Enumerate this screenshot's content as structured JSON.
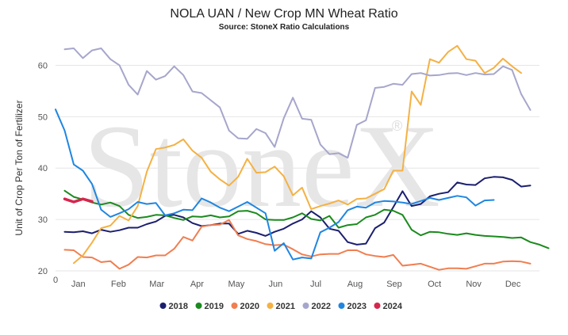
{
  "chart_data": {
    "type": "line",
    "title": "NOLA UAN / New Crop MN Wheat Ratio",
    "subtitle": "Source: StoneX Ratio Calculations",
    "ylabel": "Unit of Crop Per Ton of Fertilizer",
    "xlabel": "",
    "watermark": "StoneX",
    "watermark_mark": "®",
    "ylim": [
      20,
      65
    ],
    "yticks": [
      20,
      30,
      40,
      50,
      60
    ],
    "x_origin_label": "0",
    "xlim": [
      0,
      53
    ],
    "month_ticks": [
      {
        "label": "Jan",
        "x": 2.5
      },
      {
        "label": "Feb",
        "x": 6.9
      },
      {
        "label": "Mar",
        "x": 11.1
      },
      {
        "label": "Apr",
        "x": 15.5
      },
      {
        "label": "May",
        "x": 19.8
      },
      {
        "label": "Jun",
        "x": 24.1
      },
      {
        "label": "Jul",
        "x": 28.5
      },
      {
        "label": "Aug",
        "x": 32.8
      },
      {
        "label": "Sep",
        "x": 37.1
      },
      {
        "label": "Oct",
        "x": 41.5
      },
      {
        "label": "Nov",
        "x": 45.8
      },
      {
        "label": "Dec",
        "x": 50.1
      }
    ],
    "grid": true,
    "legend_position": "bottom",
    "series": [
      {
        "name": "2018",
        "color": "#1b1f6e",
        "start_week": 1,
        "values": [
          27.6,
          27.5,
          27.7,
          27.3,
          28.0,
          27.6,
          27.9,
          28.4,
          28.4,
          29.1,
          29.6,
          30.7,
          30.9,
          30.4,
          29.3,
          28.7,
          28.9,
          29.2,
          29.2,
          27.2,
          27.8,
          27.4,
          26.8,
          27.6,
          28.2,
          29.2,
          30.0,
          31.6,
          30.4,
          28.2,
          27.8,
          25.6,
          25.1,
          25.3,
          28.3,
          29.4,
          32.4,
          35.5,
          32.6,
          33.0,
          34.5,
          35.0,
          35.3,
          37.2,
          36.8,
          36.7,
          38.0,
          38.3,
          38.2,
          37.7,
          36.4,
          36.6
        ]
      },
      {
        "name": "2019",
        "color": "#1b8a1e",
        "start_week": 1,
        "values": [
          35.6,
          34.4,
          33.9,
          33.3,
          32.9,
          33.3,
          32.6,
          30.9,
          30.3,
          30.5,
          30.9,
          30.8,
          30.3,
          29.9,
          30.6,
          30.5,
          30.8,
          30.4,
          30.6,
          31.6,
          31.7,
          31.2,
          30.0,
          29.9,
          29.9,
          30.4,
          31.2,
          30.1,
          29.8,
          30.7,
          28.4,
          28.9,
          29.1,
          30.4,
          30.9,
          31.9,
          31.7,
          30.9,
          28.0,
          26.9,
          27.6,
          27.5,
          27.2,
          27.0,
          27.3,
          27.0,
          26.8,
          26.7,
          26.6,
          26.4,
          26.5,
          25.6,
          25.1,
          24.4
        ]
      },
      {
        "name": "2020",
        "color": "#f07e50",
        "start_week": 1,
        "values": [
          24.1,
          24.0,
          22.7,
          22.6,
          21.7,
          21.9,
          20.4,
          21.2,
          22.7,
          22.6,
          23.0,
          23.0,
          24.3,
          26.6,
          25.9,
          28.6,
          28.9,
          29.0,
          29.9,
          26.9,
          26.2,
          25.8,
          25.2,
          25.0,
          25.1,
          24.2,
          23.2,
          22.8,
          23.2,
          23.3,
          23.3,
          24.0,
          24.0,
          23.2,
          22.9,
          22.7,
          23.1,
          21.0,
          21.2,
          21.4,
          20.8,
          20.2,
          20.5,
          20.5,
          20.4,
          20.9,
          21.4,
          21.4,
          21.8,
          21.9,
          21.8,
          21.4
        ]
      },
      {
        "name": "2021",
        "color": "#f4b144",
        "start_week": 2,
        "values": [
          21.5,
          23.0,
          25.5,
          28.3,
          28.8,
          30.7,
          29.8,
          32.6,
          39.3,
          43.7,
          44.0,
          44.5,
          45.6,
          43.4,
          42.0,
          39.3,
          37.8,
          36.6,
          38.3,
          41.8,
          39.1,
          39.2,
          40.3,
          38.4,
          34.7,
          36.2,
          32.0,
          32.6,
          33.1,
          33.7,
          32.9,
          34.0,
          34.1,
          35.0,
          35.9,
          39.5,
          39.5,
          54.9,
          52.3,
          61.2,
          60.5,
          62.6,
          63.8,
          61.2,
          60.9,
          58.5,
          59.5,
          61.3,
          59.8,
          58.5
        ]
      },
      {
        "name": "2022",
        "color": "#a6a6cc",
        "start_week": 1,
        "values": [
          63.1,
          63.3,
          61.4,
          62.9,
          63.3,
          61.2,
          60.0,
          56.2,
          54.3,
          58.9,
          57.2,
          57.9,
          59.8,
          58.1,
          54.9,
          54.6,
          53.2,
          51.8,
          47.3,
          45.8,
          45.7,
          47.6,
          46.8,
          44.1,
          49.7,
          53.7,
          49.6,
          49.4,
          44.6,
          42.7,
          42.9,
          42.0,
          48.4,
          49.3,
          55.6,
          55.8,
          56.4,
          56.2,
          58.3,
          58.5,
          58.0,
          58.1,
          58.4,
          58.5,
          58.1,
          58.5,
          58.2,
          58.3,
          59.8,
          59.1,
          54.4,
          51.3
        ]
      },
      {
        "name": "2023",
        "color": "#1f86e0",
        "start_week": 0,
        "values": [
          51.4,
          47.3,
          40.7,
          39.5,
          36.9,
          31.9,
          30.5,
          31.2,
          32.0,
          33.4,
          33.0,
          33.2,
          30.8,
          31.2,
          31.9,
          31.8,
          34.1,
          33.3,
          32.3,
          31.6,
          32.5,
          33.4,
          32.3,
          31.2,
          23.9,
          25.4,
          22.2,
          22.6,
          22.4,
          27.5,
          28.4,
          29.5,
          31.8,
          32.5,
          32.3,
          33.3,
          33.6,
          33.5,
          33.3,
          33.0,
          33.6,
          34.2,
          33.8,
          34.2,
          34.6,
          34.3,
          32.7,
          33.7,
          33.8
        ]
      },
      {
        "name": "2024",
        "color": "#d6264e",
        "start_week": 1,
        "values": [
          34.0,
          33.4,
          34.0,
          33.5
        ]
      }
    ]
  }
}
